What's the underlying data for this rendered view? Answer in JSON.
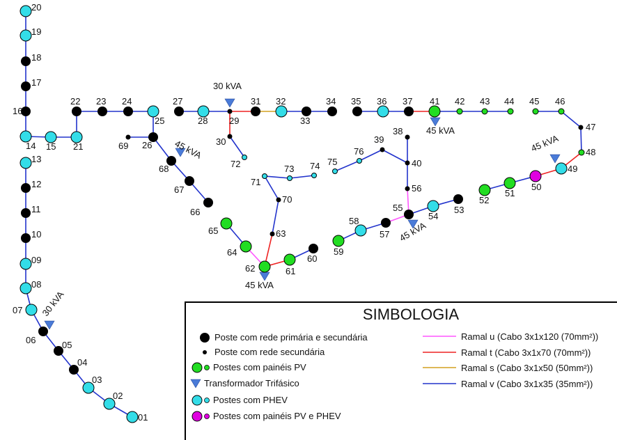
{
  "colors": {
    "primary_pole": "#000000",
    "pv": "#22dd22",
    "phev": "#33dde8",
    "pv_phev": "#e000e0",
    "transformer": "#4a7bd8",
    "ramal_u": "#ff55ff",
    "ramal_t": "#ee2222",
    "ramal_s": "#d4a020",
    "ramal_v": "#2233cc"
  },
  "transformers": [
    {
      "label": "30 kVA"
    },
    {
      "label": "45 kVA"
    },
    {
      "label": "45 kVA"
    },
    {
      "label": "45 kVA"
    },
    {
      "label": "45 kVA"
    },
    {
      "label": "45 kVA"
    },
    {
      "label": "30 kVA"
    }
  ],
  "nodes": [
    {
      "id": "20",
      "type": "phev"
    },
    {
      "id": "19",
      "type": "phev"
    },
    {
      "id": "18",
      "type": "primary"
    },
    {
      "id": "17",
      "type": "primary"
    },
    {
      "id": "16",
      "type": "primary"
    },
    {
      "id": "14",
      "type": "phev"
    },
    {
      "id": "15",
      "type": "phev"
    },
    {
      "id": "21",
      "type": "phev"
    },
    {
      "id": "22",
      "type": "primary"
    },
    {
      "id": "23",
      "type": "primary"
    },
    {
      "id": "24",
      "type": "primary"
    },
    {
      "id": "25",
      "type": "phev"
    },
    {
      "id": "26",
      "type": "primary"
    },
    {
      "id": "69",
      "type": "secondary"
    },
    {
      "id": "68",
      "type": "primary"
    },
    {
      "id": "67",
      "type": "primary"
    },
    {
      "id": "66",
      "type": "primary"
    },
    {
      "id": "13",
      "type": "phev"
    },
    {
      "id": "12",
      "type": "primary"
    },
    {
      "id": "11",
      "type": "primary"
    },
    {
      "id": "10",
      "type": "primary"
    },
    {
      "id": "09",
      "type": "phev"
    },
    {
      "id": "08",
      "type": "phev"
    },
    {
      "id": "07",
      "type": "phev"
    },
    {
      "id": "06",
      "type": "primary"
    },
    {
      "id": "05",
      "type": "primary"
    },
    {
      "id": "04",
      "type": "primary"
    },
    {
      "id": "03",
      "type": "phev"
    },
    {
      "id": "02",
      "type": "phev"
    },
    {
      "id": "01",
      "type": "phev"
    },
    {
      "id": "27",
      "type": "primary"
    },
    {
      "id": "28",
      "type": "phev"
    },
    {
      "id": "29",
      "type": "secondary"
    },
    {
      "id": "31",
      "type": "primary"
    },
    {
      "id": "32",
      "type": "phev"
    },
    {
      "id": "33",
      "type": "primary"
    },
    {
      "id": "34",
      "type": "primary"
    },
    {
      "id": "30",
      "type": "secondary"
    },
    {
      "id": "72",
      "type": "phev_small"
    },
    {
      "id": "71",
      "type": "phev_small"
    },
    {
      "id": "73",
      "type": "phev_small"
    },
    {
      "id": "74",
      "type": "phev_small"
    },
    {
      "id": "70",
      "type": "secondary"
    },
    {
      "id": "63",
      "type": "secondary"
    },
    {
      "id": "65",
      "type": "pv"
    },
    {
      "id": "64",
      "type": "pv"
    },
    {
      "id": "62",
      "type": "pv"
    },
    {
      "id": "61",
      "type": "pv"
    },
    {
      "id": "60",
      "type": "primary"
    },
    {
      "id": "35",
      "type": "primary"
    },
    {
      "id": "36",
      "type": "phev"
    },
    {
      "id": "37",
      "type": "primary"
    },
    {
      "id": "41",
      "type": "pv"
    },
    {
      "id": "42",
      "type": "pv_small"
    },
    {
      "id": "43",
      "type": "pv_small"
    },
    {
      "id": "44",
      "type": "pv_small"
    },
    {
      "id": "45",
      "type": "pv_small"
    },
    {
      "id": "46",
      "type": "pv_small"
    },
    {
      "id": "47",
      "type": "secondary"
    },
    {
      "id": "48",
      "type": "pv_small"
    },
    {
      "id": "49",
      "type": "phev"
    },
    {
      "id": "50",
      "type": "pv_phev"
    },
    {
      "id": "51",
      "type": "pv"
    },
    {
      "id": "52",
      "type": "pv"
    },
    {
      "id": "38",
      "type": "secondary"
    },
    {
      "id": "39",
      "type": "secondary"
    },
    {
      "id": "40",
      "type": "secondary"
    },
    {
      "id": "56",
      "type": "secondary"
    },
    {
      "id": "55",
      "type": "primary"
    },
    {
      "id": "54",
      "type": "phev"
    },
    {
      "id": "53",
      "type": "primary"
    },
    {
      "id": "57",
      "type": "primary"
    },
    {
      "id": "58",
      "type": "phev"
    },
    {
      "id": "59",
      "type": "pv"
    },
    {
      "id": "75",
      "type": "phev_small"
    },
    {
      "id": "76",
      "type": "phev_small"
    }
  ],
  "edges": [
    [
      "20",
      "19",
      "v"
    ],
    [
      "19",
      "18",
      "v"
    ],
    [
      "18",
      "17",
      "v"
    ],
    [
      "17",
      "16",
      "v"
    ],
    [
      "16",
      "14",
      "v"
    ],
    [
      "14",
      "15",
      "v"
    ],
    [
      "15",
      "21",
      "v"
    ],
    [
      "21",
      "22",
      "v"
    ],
    [
      "22",
      "23",
      "v"
    ],
    [
      "23",
      "24",
      "v"
    ],
    [
      "24",
      "25",
      "v"
    ],
    [
      "25",
      "26",
      "v"
    ],
    [
      "26",
      "69",
      "v"
    ],
    [
      "26",
      "68",
      "v"
    ],
    [
      "68",
      "67",
      "v"
    ],
    [
      "67",
      "66",
      "v"
    ],
    [
      "13",
      "12",
      "v"
    ],
    [
      "12",
      "11",
      "v"
    ],
    [
      "11",
      "10",
      "v"
    ],
    [
      "10",
      "09",
      "v"
    ],
    [
      "09",
      "08",
      "v"
    ],
    [
      "08",
      "07",
      "v"
    ],
    [
      "07",
      "06",
      "v"
    ],
    [
      "06",
      "05",
      "v"
    ],
    [
      "05",
      "04",
      "v"
    ],
    [
      "04",
      "03",
      "v"
    ],
    [
      "03",
      "02",
      "v"
    ],
    [
      "02",
      "01",
      "v"
    ],
    [
      "27",
      "28",
      "v"
    ],
    [
      "28",
      "29",
      "v"
    ],
    [
      "29",
      "31",
      "t"
    ],
    [
      "31",
      "32",
      "s"
    ],
    [
      "32",
      "33",
      "v"
    ],
    [
      "33",
      "34",
      "v"
    ],
    [
      "29",
      "30",
      "t"
    ],
    [
      "30",
      "72",
      "v"
    ],
    [
      "71",
      "73",
      "v"
    ],
    [
      "73",
      "74",
      "v"
    ],
    [
      "71",
      "70",
      "v"
    ],
    [
      "70",
      "63",
      "v"
    ],
    [
      "63",
      "62",
      "t"
    ],
    [
      "62",
      "64",
      "u"
    ],
    [
      "64",
      "65",
      "v"
    ],
    [
      "62",
      "61",
      "t"
    ],
    [
      "61",
      "60",
      "v"
    ],
    [
      "35",
      "36",
      "v"
    ],
    [
      "36",
      "37",
      "v"
    ],
    [
      "37",
      "41",
      "t"
    ],
    [
      "41",
      "42",
      "v"
    ],
    [
      "42",
      "43",
      "v"
    ],
    [
      "43",
      "44",
      "v"
    ],
    [
      "45",
      "46",
      "v"
    ],
    [
      "46",
      "47",
      "v"
    ],
    [
      "47",
      "48",
      "v"
    ],
    [
      "48",
      "49",
      "t"
    ],
    [
      "49",
      "50",
      "t"
    ],
    [
      "50",
      "51",
      "v"
    ],
    [
      "51",
      "52",
      "v"
    ],
    [
      "38",
      "40",
      "v"
    ],
    [
      "39",
      "40",
      "v"
    ],
    [
      "39",
      "76",
      "v"
    ],
    [
      "76",
      "75",
      "v"
    ],
    [
      "40",
      "56",
      "v"
    ],
    [
      "56",
      "55",
      "u"
    ],
    [
      "55",
      "54",
      "v"
    ],
    [
      "54",
      "53",
      "v"
    ],
    [
      "55",
      "57",
      "u"
    ],
    [
      "57",
      "58",
      "v"
    ],
    [
      "58",
      "59",
      "v"
    ]
  ],
  "legend": {
    "title": "SIMBOLOGIA",
    "items": [
      {
        "key": "primary",
        "text": "Poste com rede primária e secundária"
      },
      {
        "key": "secondary",
        "text": "Poste com rede secundária"
      },
      {
        "key": "pv",
        "text": "Postes com painéis PV"
      },
      {
        "key": "transformer",
        "text": "Transformador Trifásico"
      },
      {
        "key": "phev",
        "text": "Postes com PHEV"
      },
      {
        "key": "pv_phev",
        "text": "Postes com painéis PV e PHEV"
      }
    ],
    "cables": [
      {
        "key": "u",
        "text": "Ramal u (Cabo 3x1x120 (70mm²))"
      },
      {
        "key": "t",
        "text": "Ramal t (Cabo 3x1x70 (70mm²))"
      },
      {
        "key": "s",
        "text": "Ramal s (Cabo 3x1x50 (50mm²))"
      },
      {
        "key": "v",
        "text": "Ramal v (Cabo 3x1x35 (35mm²))"
      }
    ]
  }
}
